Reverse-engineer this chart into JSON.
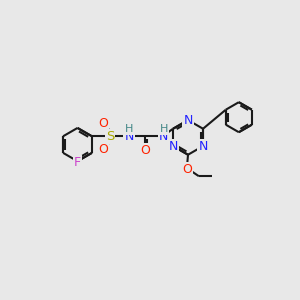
{
  "bg_color": "#e8e8e8",
  "bond_color": "#1a1a1a",
  "bond_width": 1.5,
  "atoms": {
    "F": {
      "color": "#cc44cc"
    },
    "O": {
      "color": "#ff2200"
    },
    "N": {
      "color": "#2222ff"
    },
    "S": {
      "color": "#aaaa00"
    },
    "H": {
      "color": "#448888"
    }
  },
  "figsize": [
    3.0,
    3.0
  ],
  "dpi": 100
}
